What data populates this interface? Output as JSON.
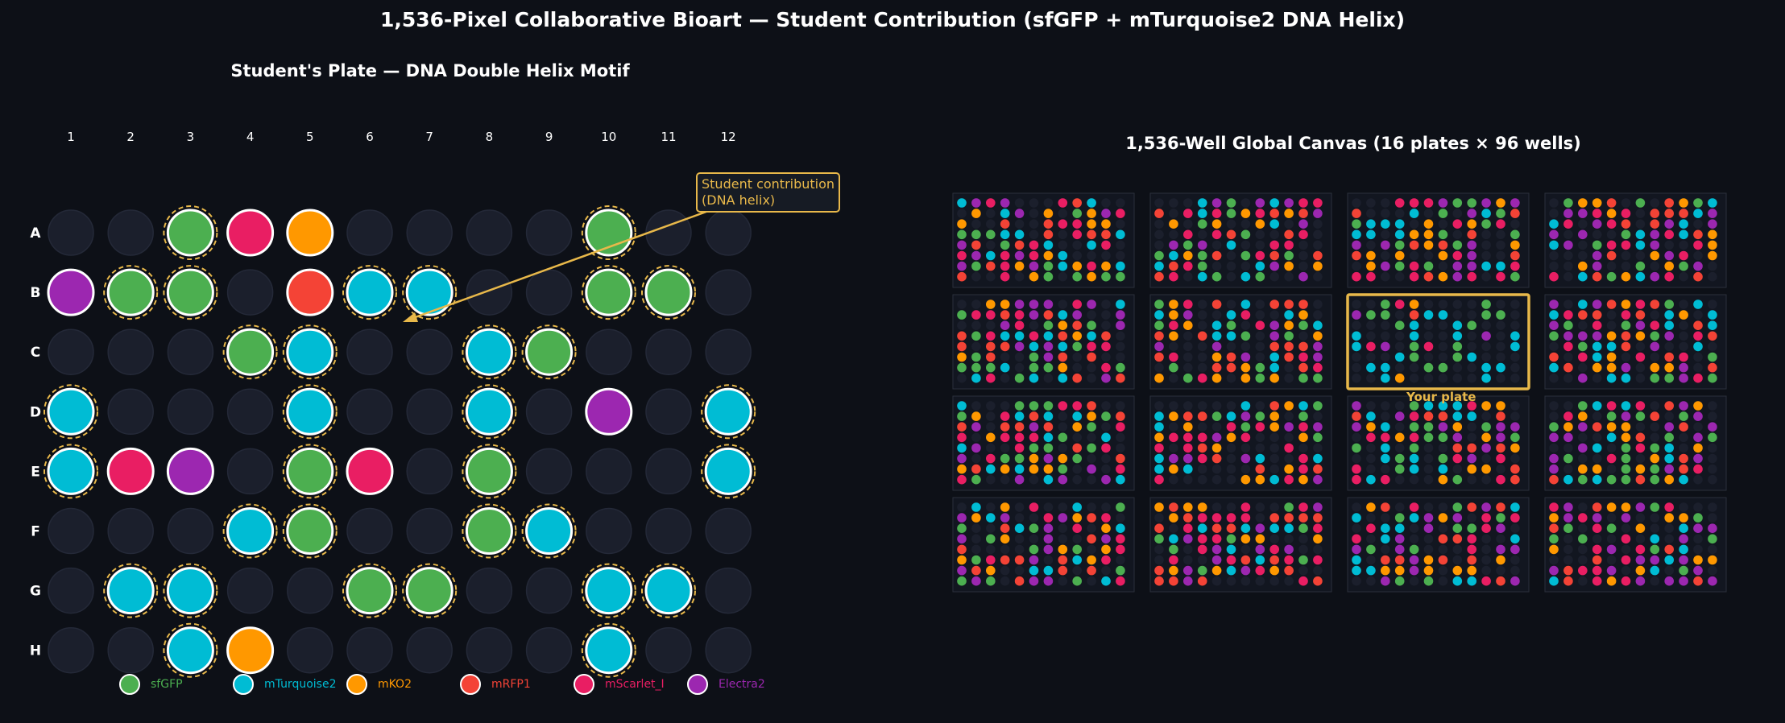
{
  "title": "1,536-Pixel Collaborative Bioart — Student Contribution (sfGFP + mTurquoise2 DNA Helix)",
  "plate_title": "Student's Plate — DNA Double Helix Motif",
  "canvas_title": "1,536-Well Global Canvas (16 plates × 96 wells)",
  "annotation": {
    "line1": "Student contribution",
    "line2": "(DNA helix)"
  },
  "your_plate_label": "Your plate",
  "colors": {
    "background": "#0d1017",
    "empty_well": "#1b1f2c",
    "highlight": "#e8b84a",
    "sfGFP": "#4caf50",
    "mTurquoise2": "#00bcd4",
    "mKO2": "#ff9800",
    "mRFP1": "#f44336",
    "mScarlet_I": "#e91e63",
    "Electra2": "#9c27b0"
  },
  "chart_data": [
    {
      "type": "heatmap",
      "title": "Student's Plate — DNA Double Helix Motif",
      "columns": [
        "1",
        "2",
        "3",
        "4",
        "5",
        "6",
        "7",
        "8",
        "9",
        "10",
        "11",
        "12"
      ],
      "rows": [
        "A",
        "B",
        "C",
        "D",
        "E",
        "F",
        "G",
        "H"
      ],
      "wells": [
        [
          null,
          null,
          "sfGFP",
          "mScarlet_I",
          "mKO2",
          null,
          null,
          null,
          null,
          "sfGFP",
          null,
          null
        ],
        [
          "Electra2",
          "sfGFP",
          "sfGFP",
          null,
          "mRFP1",
          "mTurquoise2",
          "mTurquoise2",
          null,
          null,
          "sfGFP",
          "sfGFP",
          null
        ],
        [
          null,
          null,
          null,
          "sfGFP",
          "mTurquoise2",
          null,
          null,
          "mTurquoise2",
          "sfGFP",
          null,
          null,
          null
        ],
        [
          "mTurquoise2",
          null,
          null,
          null,
          "mTurquoise2",
          null,
          null,
          "mTurquoise2",
          null,
          "Electra2",
          null,
          "mTurquoise2"
        ],
        [
          "mTurquoise2",
          "mScarlet_I",
          "Electra2",
          null,
          "sfGFP",
          "mScarlet_I",
          null,
          "sfGFP",
          null,
          null,
          null,
          "mTurquoise2"
        ],
        [
          null,
          null,
          null,
          "mTurquoise2",
          "sfGFP",
          null,
          null,
          "sfGFP",
          "mTurquoise2",
          null,
          null,
          null
        ],
        [
          null,
          "mTurquoise2",
          "mTurquoise2",
          null,
          null,
          "sfGFP",
          "sfGFP",
          null,
          null,
          "mTurquoise2",
          "mTurquoise2",
          null
        ],
        [
          null,
          null,
          "mTurquoise2",
          "mKO2",
          null,
          null,
          null,
          null,
          null,
          "mTurquoise2",
          null,
          null
        ]
      ],
      "helix_wells": [
        [
          0,
          2
        ],
        [
          0,
          9
        ],
        [
          1,
          1
        ],
        [
          1,
          2
        ],
        [
          1,
          5
        ],
        [
          1,
          6
        ],
        [
          1,
          9
        ],
        [
          1,
          10
        ],
        [
          2,
          3
        ],
        [
          2,
          4
        ],
        [
          2,
          7
        ],
        [
          2,
          8
        ],
        [
          3,
          0
        ],
        [
          3,
          4
        ],
        [
          3,
          7
        ],
        [
          3,
          11
        ],
        [
          4,
          0
        ],
        [
          4,
          4
        ],
        [
          4,
          7
        ],
        [
          4,
          11
        ],
        [
          5,
          3
        ],
        [
          5,
          4
        ],
        [
          5,
          7
        ],
        [
          5,
          8
        ],
        [
          6,
          1
        ],
        [
          6,
          2
        ],
        [
          6,
          5
        ],
        [
          6,
          6
        ],
        [
          6,
          9
        ],
        [
          6,
          10
        ],
        [
          7,
          2
        ],
        [
          7,
          9
        ]
      ],
      "legend": [
        {
          "key": "sfGFP",
          "label": "sfGFP"
        },
        {
          "key": "mTurquoise2",
          "label": "mTurquoise2"
        },
        {
          "key": "mKO2",
          "label": "mKO2"
        },
        {
          "key": "mRFP1",
          "label": "mRFP1"
        },
        {
          "key": "mScarlet_I",
          "label": "mScarlet_I"
        },
        {
          "key": "Electra2",
          "label": "Electra2"
        }
      ]
    },
    {
      "type": "heatmap",
      "title": "1,536-Well Global Canvas (16 plates × 96 wells)",
      "plate_grid": [
        4,
        4
      ],
      "plate_wells": [
        12,
        8
      ],
      "highlighted_plate": [
        1,
        2
      ],
      "highlighted_plate_label": "Your plate",
      "fill_fraction_other_plates": 0.7,
      "palette": [
        "sfGFP",
        "mTurquoise2",
        "mKO2",
        "mRFP1",
        "mScarlet_I",
        "Electra2"
      ]
    }
  ]
}
